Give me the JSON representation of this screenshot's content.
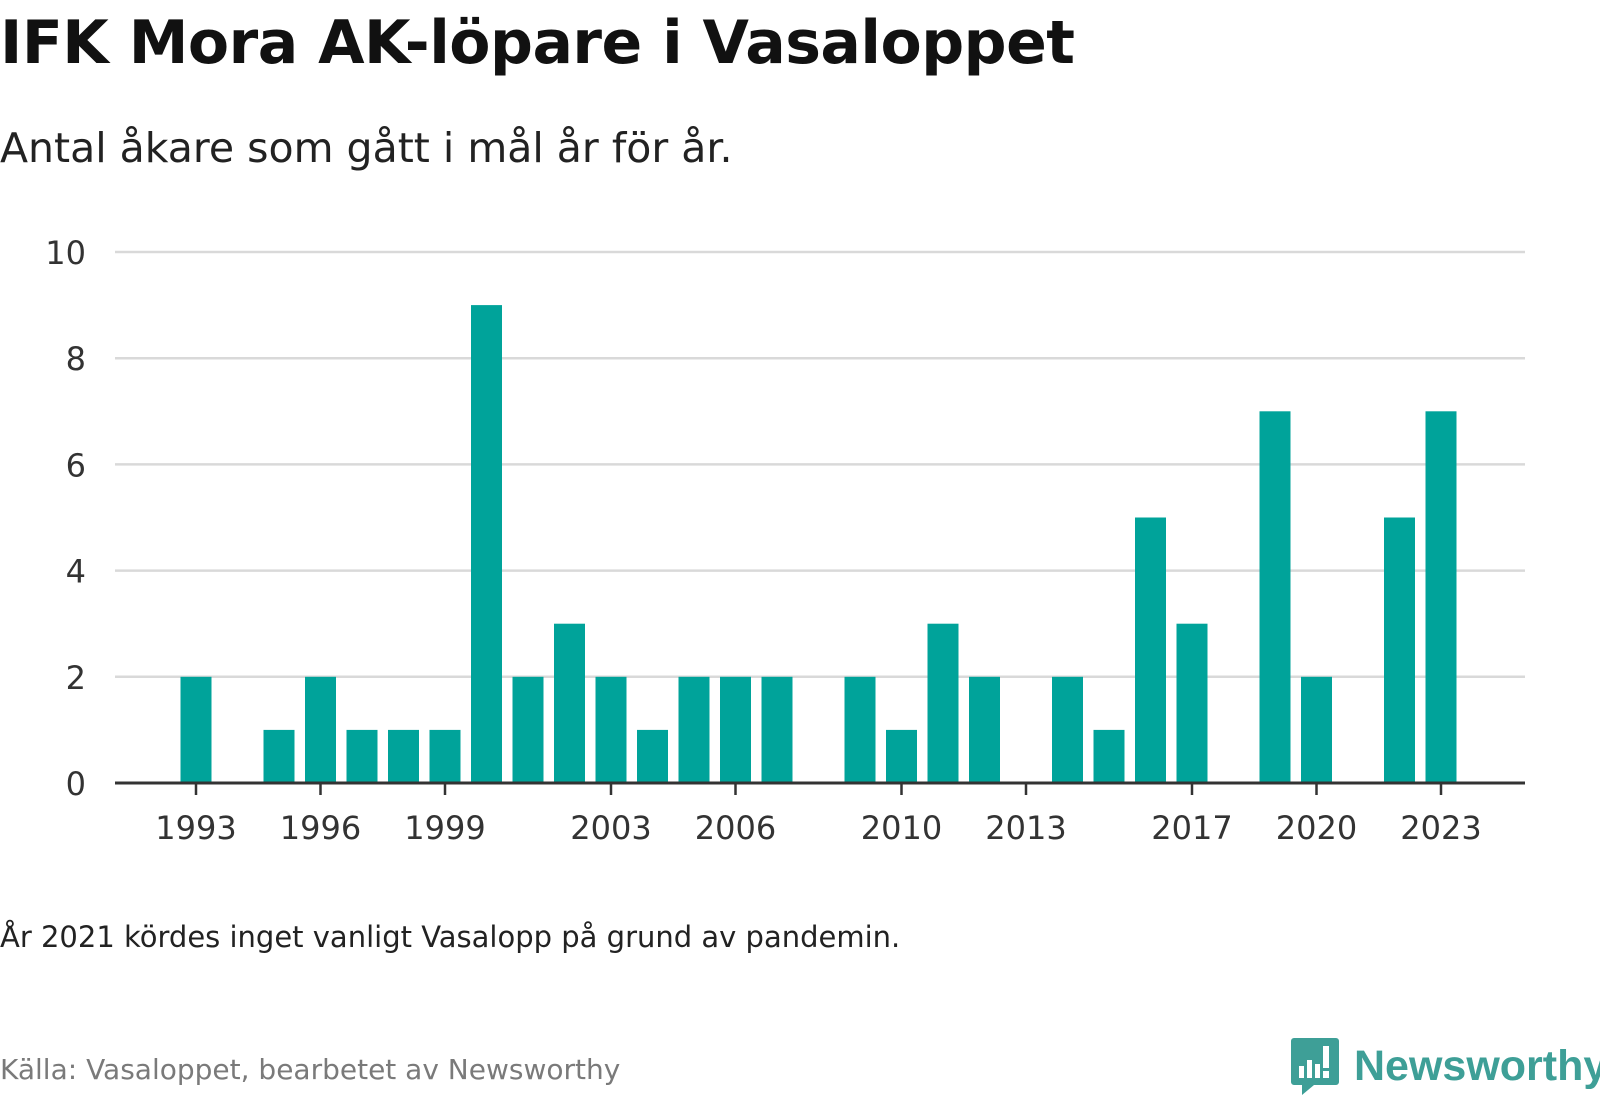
{
  "header": {
    "title": "IFK Mora AK-löpare i Vasaloppet",
    "subtitle": "Antal åkare som gått i mål år för år."
  },
  "footer": {
    "note": "År 2021 kördes inget vanligt Vasalopp på grund av pandemin.",
    "source": "Källa: Vasaloppet, bearbetet av Newsworthy",
    "brand": "Newsworthy"
  },
  "colors": {
    "bar": "#00a39a",
    "gridline": "#d9d9d9",
    "axis": "#333333",
    "brand": "#3e9f97"
  },
  "icons": {
    "brand_logo": "newsworthy-logo-icon"
  },
  "chart_data": {
    "type": "bar",
    "title": "IFK Mora AK-löpare i Vasaloppet",
    "subtitle": "Antal åkare som gått i mål år för år.",
    "xlabel": "",
    "ylabel": "",
    "ylim": [
      0,
      10
    ],
    "yticks": [
      0,
      2,
      4,
      6,
      8,
      10
    ],
    "xlim": [
      1992,
      2025
    ],
    "xticks": [
      1993,
      1996,
      1999,
      2003,
      2006,
      2010,
      2013,
      2017,
      2020,
      2023
    ],
    "grid": true,
    "legend": "none",
    "points": [
      {
        "year": 1993,
        "value": 2
      },
      {
        "year": 1995,
        "value": 1
      },
      {
        "year": 1996,
        "value": 2
      },
      {
        "year": 1997,
        "value": 1
      },
      {
        "year": 1998,
        "value": 1
      },
      {
        "year": 1999,
        "value": 1
      },
      {
        "year": 2000,
        "value": 9
      },
      {
        "year": 2001,
        "value": 2
      },
      {
        "year": 2002,
        "value": 3
      },
      {
        "year": 2003,
        "value": 2
      },
      {
        "year": 2004,
        "value": 1
      },
      {
        "year": 2005,
        "value": 2
      },
      {
        "year": 2006,
        "value": 2
      },
      {
        "year": 2007,
        "value": 2
      },
      {
        "year": 2009,
        "value": 2
      },
      {
        "year": 2010,
        "value": 1
      },
      {
        "year": 2011,
        "value": 3
      },
      {
        "year": 2012,
        "value": 2
      },
      {
        "year": 2014,
        "value": 2
      },
      {
        "year": 2015,
        "value": 1
      },
      {
        "year": 2016,
        "value": 5
      },
      {
        "year": 2017,
        "value": 3
      },
      {
        "year": 2019,
        "value": 7
      },
      {
        "year": 2020,
        "value": 2
      },
      {
        "year": 2022,
        "value": 5
      },
      {
        "year": 2023,
        "value": 7
      }
    ]
  }
}
